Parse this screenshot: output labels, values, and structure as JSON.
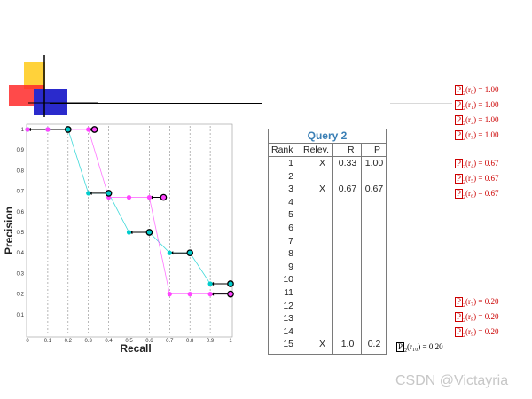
{
  "chart_data": {
    "type": "line",
    "xlabel": "Recall",
    "ylabel": "Precision",
    "xlim": [
      0,
      1
    ],
    "ylim": [
      0,
      1
    ],
    "x_ticks": [
      "0",
      "0.1",
      "0.2",
      "0.3",
      "0.4",
      "0.5",
      "0.6",
      "0.7",
      "0.8",
      "0.9",
      "1"
    ],
    "y_ticks": [
      "1",
      "0.9",
      "0.8",
      "0.7",
      "0.6",
      "0.5",
      "0.4",
      "0.3",
      "0.2",
      "0.1"
    ],
    "grid": "vertical dashed",
    "series": [
      {
        "color": "#00cccc",
        "x": [
          0,
          0.1,
          0.2,
          0.3,
          0.4,
          0.5,
          0.6,
          0.7,
          0.8,
          0.9,
          1.0
        ],
        "y": [
          1.0,
          1.0,
          1.0,
          0.69,
          0.69,
          0.5,
          0.5,
          0.4,
          0.4,
          0.25,
          0.25
        ]
      },
      {
        "color": "#ff44ff",
        "x": [
          0,
          0.1,
          0.2,
          0.3,
          0.4,
          0.5,
          0.6,
          0.7,
          0.8,
          0.9,
          1.0
        ],
        "y": [
          1.0,
          1.0,
          1.0,
          1.0,
          0.67,
          0.67,
          0.67,
          0.2,
          0.2,
          0.2,
          0.2
        ]
      }
    ],
    "step_arrows": [
      {
        "color": "#00cccc",
        "x0": 0.0,
        "x1": 0.2,
        "y": 1.0
      },
      {
        "color": "#00cccc",
        "x0": 0.3,
        "x1": 0.4,
        "y": 0.69
      },
      {
        "color": "#00cccc",
        "x0": 0.5,
        "x1": 0.6,
        "y": 0.5
      },
      {
        "color": "#00cccc",
        "x0": 0.7,
        "x1": 0.8,
        "y": 0.4
      },
      {
        "color": "#00cccc",
        "x0": 0.9,
        "x1": 1.0,
        "y": 0.25
      },
      {
        "color": "#ff44ff",
        "x0": 0.3,
        "x1": 0.33,
        "y": 1.0
      },
      {
        "color": "#ff44ff",
        "x0": 0.6,
        "x1": 0.67,
        "y": 0.67
      },
      {
        "color": "#ff44ff",
        "x0": 0.9,
        "x1": 1.0,
        "y": 0.2
      }
    ]
  },
  "table": {
    "title": "Query 2",
    "headers": [
      "Rank",
      "Relev.",
      "R",
      "P"
    ],
    "rows": [
      {
        "rank": "1",
        "relev": "X",
        "r": "0.33",
        "p": "1.00"
      },
      {
        "rank": "2",
        "relev": "",
        "r": "",
        "p": ""
      },
      {
        "rank": "3",
        "relev": "X",
        "r": "0.67",
        "p": "0.67"
      },
      {
        "rank": "4",
        "relev": "",
        "r": "",
        "p": ""
      },
      {
        "rank": "5",
        "relev": "",
        "r": "",
        "p": ""
      },
      {
        "rank": "6",
        "relev": "",
        "r": "",
        "p": ""
      },
      {
        "rank": "7",
        "relev": "",
        "r": "",
        "p": ""
      },
      {
        "rank": "8",
        "relev": "",
        "r": "",
        "p": ""
      },
      {
        "rank": "9",
        "relev": "",
        "r": "",
        "p": ""
      },
      {
        "rank": "10",
        "relev": "",
        "r": "",
        "p": ""
      },
      {
        "rank": "11",
        "relev": "",
        "r": "",
        "p": ""
      },
      {
        "rank": "12",
        "relev": "",
        "r": "",
        "p": ""
      },
      {
        "rank": "13",
        "relev": "",
        "r": "",
        "p": ""
      },
      {
        "rank": "14",
        "relev": "",
        "r": "",
        "p": ""
      },
      {
        "rank": "15",
        "relev": "X",
        "r": "1.0",
        "p": "0.2"
      }
    ]
  },
  "annotations": [
    {
      "r": "r₀",
      "value": "= 1.00"
    },
    {
      "r": "r₁",
      "value": "= 1.00"
    },
    {
      "r": "r₂",
      "value": "= 1.00"
    },
    {
      "r": "r₃",
      "value": "= 1.00"
    },
    {
      "r": "r₄",
      "value": "= 0.67"
    },
    {
      "r": "r₅",
      "value": "= 0.67"
    },
    {
      "r": "r₆",
      "value": "= 0.67"
    },
    {
      "r": "r₇",
      "value": "= 0.20"
    },
    {
      "r": "r₈",
      "value": "= 0.20"
    },
    {
      "r": "r₉",
      "value": "= 0.20"
    },
    {
      "r": "r₁₀",
      "value": "= 0.20"
    }
  ],
  "annotation_symbol": "P",
  "annotation_subscript": "2",
  "watermark": "CSDN @Victayria",
  "colors": {
    "accent_blue": "#3a7fb5",
    "annotation_red": "#cc0000"
  }
}
